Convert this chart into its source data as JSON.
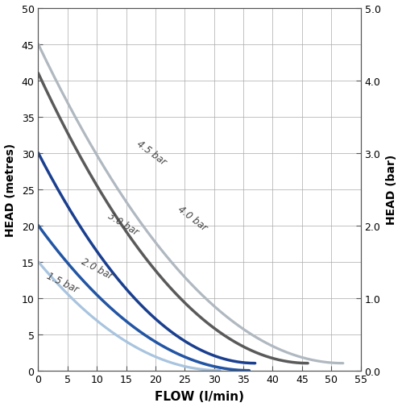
{
  "curves": [
    {
      "label": "1.5 bar",
      "x_start": 0,
      "y_start": 15,
      "x_end": 31,
      "y_end": 0,
      "color": "#a8c4df",
      "linewidth": 2.3,
      "annotation": "1.5 bar",
      "ann_x": 1.5,
      "ann_y": 13.2,
      "ann_rotation": -26
    },
    {
      "label": "2.0 bar",
      "x_start": 0,
      "y_start": 20,
      "x_end": 36,
      "y_end": 0,
      "color": "#2255a4",
      "linewidth": 2.5,
      "annotation": "2.0 bar",
      "ann_x": 7.5,
      "ann_y": 15.2,
      "ann_rotation": -28
    },
    {
      "label": "3.0 bar",
      "x_start": 0,
      "y_start": 30,
      "x_end": 37,
      "y_end": 1,
      "color": "#1a3f8f",
      "linewidth": 2.5,
      "annotation": "3.0 bar",
      "ann_x": 12.0,
      "ann_y": 21.5,
      "ann_rotation": -32
    },
    {
      "label": "4.0 bar",
      "x_start": 0,
      "y_start": 41,
      "x_end": 46,
      "y_end": 1,
      "color": "#5a5a5a",
      "linewidth": 2.5,
      "annotation": "4.0 bar",
      "ann_x": 24.0,
      "ann_y": 22.5,
      "ann_rotation": -38
    },
    {
      "label": "4.5 bar",
      "x_start": 0,
      "y_start": 45,
      "x_end": 52,
      "y_end": 1,
      "color": "#b0b8c0",
      "linewidth": 2.3,
      "annotation": "4.5 bar",
      "ann_x": 17.0,
      "ann_y": 31.5,
      "ann_rotation": -37
    }
  ],
  "curve_bow": 0.25,
  "xlim": [
    0,
    55
  ],
  "ylim": [
    0,
    50
  ],
  "xticks": [
    0,
    5,
    10,
    15,
    20,
    25,
    30,
    35,
    40,
    45,
    50,
    55
  ],
  "yticks": [
    0,
    5,
    10,
    15,
    20,
    25,
    30,
    35,
    40,
    45,
    50
  ],
  "xlabel": "FLOW (l/min)",
  "ylabel_left": "HEAD (metres)",
  "ylabel_right": "HEAD (bar)",
  "y2lim": [
    0,
    5.0
  ],
  "y2ticks": [
    0.0,
    1.0,
    2.0,
    3.0,
    4.0,
    5.0
  ],
  "background_color": "#ffffff",
  "grid_color": "#aaaaaa",
  "grid_linewidth": 0.5,
  "ann_fontsize": 8.5,
  "ann_color": "#444444",
  "xlabel_fontsize": 11,
  "ylabel_fontsize": 10,
  "tick_fontsize": 9,
  "figsize": [
    4.99,
    5.06
  ],
  "dpi": 100
}
